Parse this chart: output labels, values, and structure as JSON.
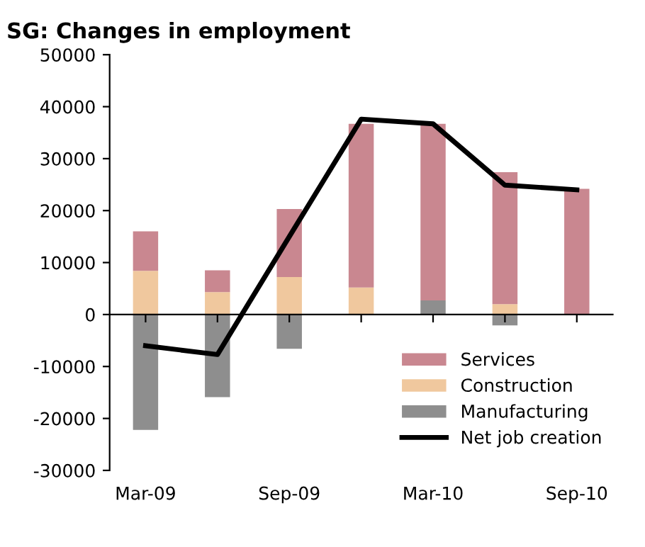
{
  "chart_data": {
    "type": "bar",
    "title": "SG: Changes in employment",
    "categories": [
      "Mar-09",
      null,
      "Sep-09",
      null,
      "Mar-10",
      null,
      "Sep-10"
    ],
    "stacked": true,
    "series": [
      {
        "name": "Manufacturing",
        "color": "#8e8e8e",
        "values": [
          -22200,
          -15900,
          -6600,
          0,
          2700,
          -2100,
          0
        ]
      },
      {
        "name": "Construction",
        "color": "#f0c89e",
        "values": [
          8400,
          4300,
          7200,
          5200,
          0,
          2000,
          0
        ]
      },
      {
        "name": "Services",
        "color": "#c98790",
        "values": [
          7600,
          4200,
          13100,
          31500,
          34000,
          25400,
          24200
        ]
      },
      {
        "name": "Net job creation",
        "type": "line",
        "color": "#000000",
        "values": [
          -6000,
          -7700,
          15000,
          37600,
          36700,
          24900,
          24000
        ]
      }
    ],
    "ylim": [
      -30000,
      50000
    ],
    "yticks": [
      -30000,
      -20000,
      -10000,
      0,
      10000,
      20000,
      30000,
      40000,
      50000
    ],
    "legend": "bottom right"
  }
}
